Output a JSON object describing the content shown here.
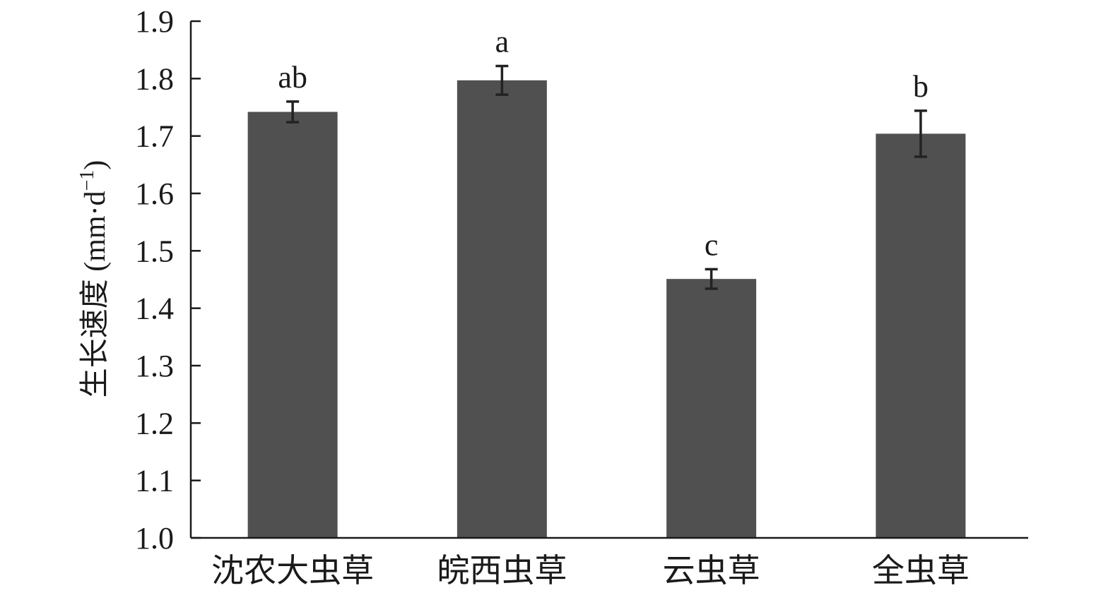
{
  "chart_data": {
    "type": "bar",
    "categories": [
      "沈农大虫草",
      "皖西虫草",
      "云虫草",
      "全虫草"
    ],
    "values": [
      1.742,
      1.797,
      1.451,
      1.704
    ],
    "errors": [
      0.018,
      0.025,
      0.017,
      0.04
    ],
    "significance": [
      "ab",
      "a",
      "c",
      "b"
    ],
    "title": "",
    "xlabel": "",
    "ylabel_main": "生长速度",
    "ylabel_unit_open": " (mm·d",
    "ylabel_unit_sup": "−1",
    "ylabel_unit_close": ")",
    "ylim": [
      1.0,
      1.9
    ],
    "yticks": [
      "1.0",
      "1.1",
      "1.2",
      "1.3",
      "1.4",
      "1.5",
      "1.6",
      "1.7",
      "1.8",
      "1.9"
    ],
    "bar_color": "#505050",
    "axis_color": "#1a1a1a",
    "errorbar_color": "#222222",
    "grid": false
  }
}
